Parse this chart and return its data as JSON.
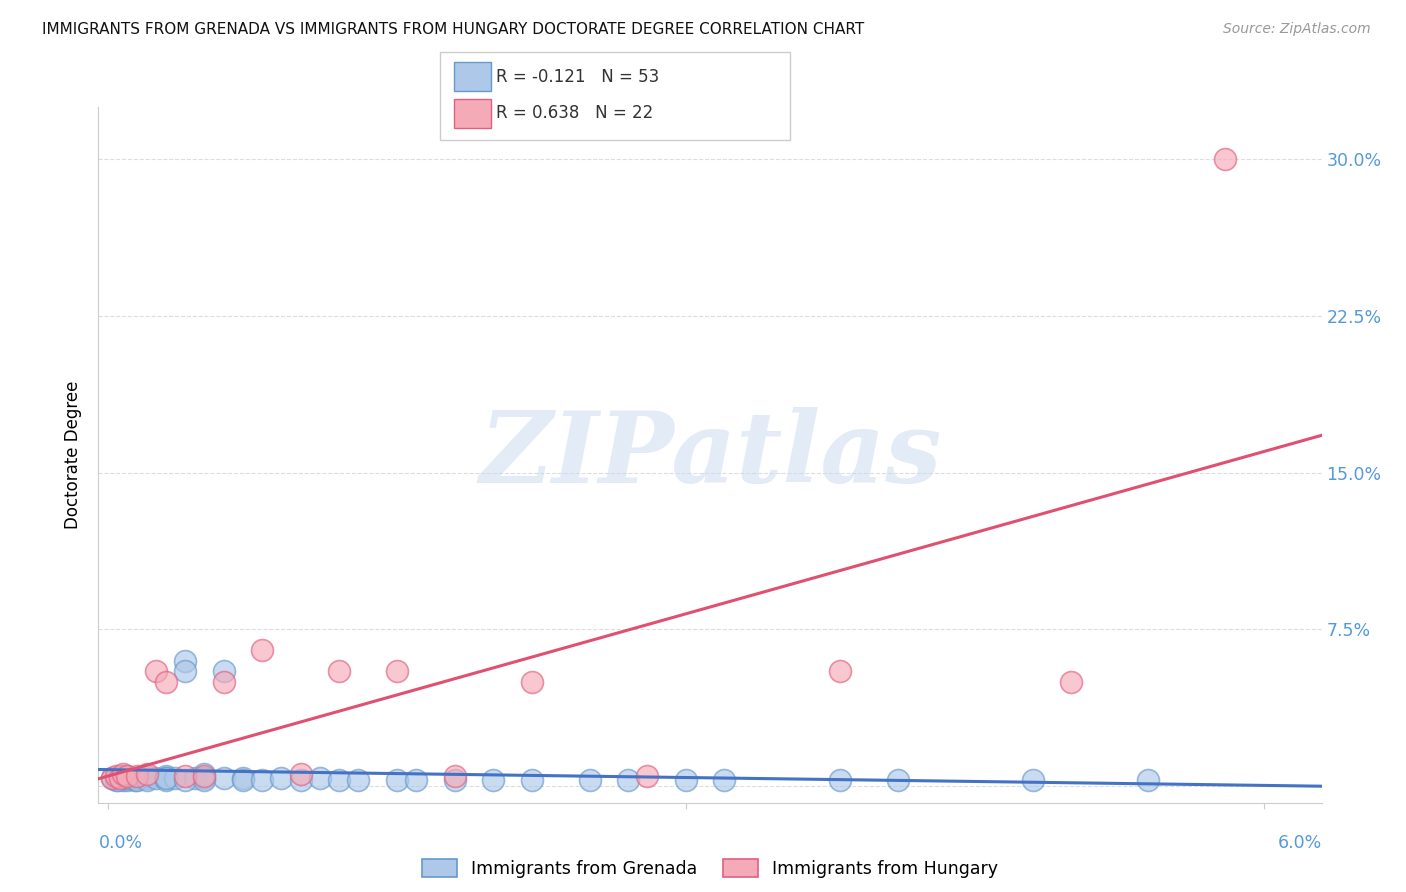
{
  "title": "IMMIGRANTS FROM GRENADA VS IMMIGRANTS FROM HUNGARY DOCTORATE DEGREE CORRELATION CHART",
  "source": "Source: ZipAtlas.com",
  "ylabel": "Doctorate Degree",
  "ytick_labels": [
    "",
    "7.5%",
    "15.0%",
    "22.5%",
    "30.0%"
  ],
  "ytick_values": [
    0.0,
    0.075,
    0.15,
    0.225,
    0.3
  ],
  "xlim": [
    -0.0005,
    0.063
  ],
  "ylim": [
    -0.008,
    0.325
  ],
  "legend_r1": "R = -0.121",
  "legend_n1": "N = 53",
  "legend_r2": "R = 0.638",
  "legend_n2": "N = 22",
  "color_grenada_fill": "#adc8e8",
  "color_grenada_edge": "#6699cc",
  "color_hungary_fill": "#f5aab8",
  "color_hungary_edge": "#e06080",
  "color_line_grenada": "#4472c4",
  "color_line_hungary": "#e05070",
  "color_tick_label": "#5599dd",
  "color_grid": "#dddddd",
  "grenada_x": [
    0.0002,
    0.0004,
    0.0006,
    0.0008,
    0.001,
    0.001,
    0.001,
    0.0012,
    0.0014,
    0.0016,
    0.0005,
    0.0007,
    0.001,
    0.0015,
    0.002,
    0.002,
    0.002,
    0.0025,
    0.003,
    0.003,
    0.003,
    0.0035,
    0.004,
    0.004,
    0.0045,
    0.005,
    0.005,
    0.006,
    0.006,
    0.007,
    0.007,
    0.008,
    0.009,
    0.01,
    0.011,
    0.012,
    0.013,
    0.015,
    0.016,
    0.018,
    0.02,
    0.022,
    0.025,
    0.027,
    0.03,
    0.032,
    0.038,
    0.041,
    0.048,
    0.054,
    0.003,
    0.004,
    0.005
  ],
  "grenada_y": [
    0.004,
    0.003,
    0.005,
    0.003,
    0.004,
    0.005,
    0.003,
    0.004,
    0.003,
    0.004,
    0.003,
    0.005,
    0.004,
    0.003,
    0.004,
    0.005,
    0.003,
    0.004,
    0.005,
    0.004,
    0.003,
    0.004,
    0.06,
    0.055,
    0.004,
    0.006,
    0.004,
    0.055,
    0.004,
    0.004,
    0.003,
    0.003,
    0.004,
    0.003,
    0.004,
    0.003,
    0.003,
    0.003,
    0.003,
    0.003,
    0.003,
    0.003,
    0.003,
    0.003,
    0.003,
    0.003,
    0.003,
    0.003,
    0.003,
    0.003,
    0.004,
    0.003,
    0.003
  ],
  "hungary_x": [
    0.0002,
    0.0004,
    0.0006,
    0.0008,
    0.001,
    0.0015,
    0.002,
    0.0025,
    0.003,
    0.004,
    0.005,
    0.006,
    0.008,
    0.01,
    0.012,
    0.015,
    0.018,
    0.022,
    0.028,
    0.038,
    0.05,
    0.058
  ],
  "hungary_y": [
    0.004,
    0.005,
    0.004,
    0.006,
    0.005,
    0.005,
    0.006,
    0.055,
    0.05,
    0.005,
    0.005,
    0.05,
    0.065,
    0.006,
    0.055,
    0.055,
    0.005,
    0.05,
    0.005,
    0.055,
    0.05,
    0.3
  ]
}
